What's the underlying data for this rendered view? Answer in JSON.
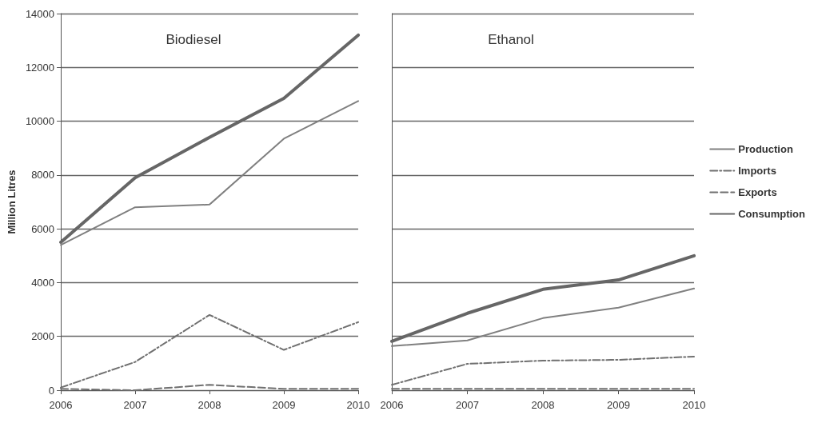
{
  "chart_data": [
    {
      "type": "line",
      "title": "Biodiesel",
      "ylabel": "Million Litres",
      "categories": [
        "2006",
        "2007",
        "2008",
        "2009",
        "2010"
      ],
      "ylim": [
        0,
        14000
      ],
      "yticks": [
        0,
        2000,
        4000,
        6000,
        8000,
        10000,
        12000,
        14000
      ],
      "grid": "y",
      "legend": false,
      "marker": "none",
      "series": [
        {
          "color": "#808080",
          "line_style": "solid",
          "values": [
            5400,
            6800,
            6900,
            9350,
            10750
          ]
        },
        {
          "color": "#707070",
          "line_style": "dashdot",
          "values": [
            100,
            1050,
            2800,
            1500,
            2530
          ]
        },
        {
          "color": "#707070",
          "line_style": "dashed",
          "values": [
            50,
            0,
            200,
            50,
            50
          ]
        },
        {
          "color": "#666666",
          "line_style": "solid",
          "values": [
            5500,
            7900,
            9400,
            10850,
            13200
          ]
        }
      ]
    },
    {
      "type": "line",
      "title": "Ethanol",
      "categories": [
        "2006",
        "2007",
        "2008",
        "2009",
        "2010"
      ],
      "ylim": [
        0,
        14000
      ],
      "yticks": [
        0,
        2000,
        4000,
        6000,
        8000,
        10000,
        12000,
        14000
      ],
      "grid": "y",
      "legend": "right",
      "tick_labels": "x",
      "marker": "none",
      "series": [
        {
          "name": "Production",
          "color": "#808080",
          "line_style": "solid",
          "values": [
            1640,
            1850,
            2680,
            3070,
            3780
          ]
        },
        {
          "name": "Imports",
          "color": "#707070",
          "line_style": "dashdot",
          "values": [
            200,
            980,
            1100,
            1130,
            1250
          ]
        },
        {
          "name": "Exports",
          "color": "#707070",
          "line_style": "dashed",
          "values": [
            50,
            50,
            50,
            50,
            50
          ]
        },
        {
          "name": "Consumption",
          "color": "#666666",
          "line_style": "solid",
          "values": [
            1820,
            2860,
            3750,
            4100,
            5000
          ]
        }
      ]
    }
  ]
}
